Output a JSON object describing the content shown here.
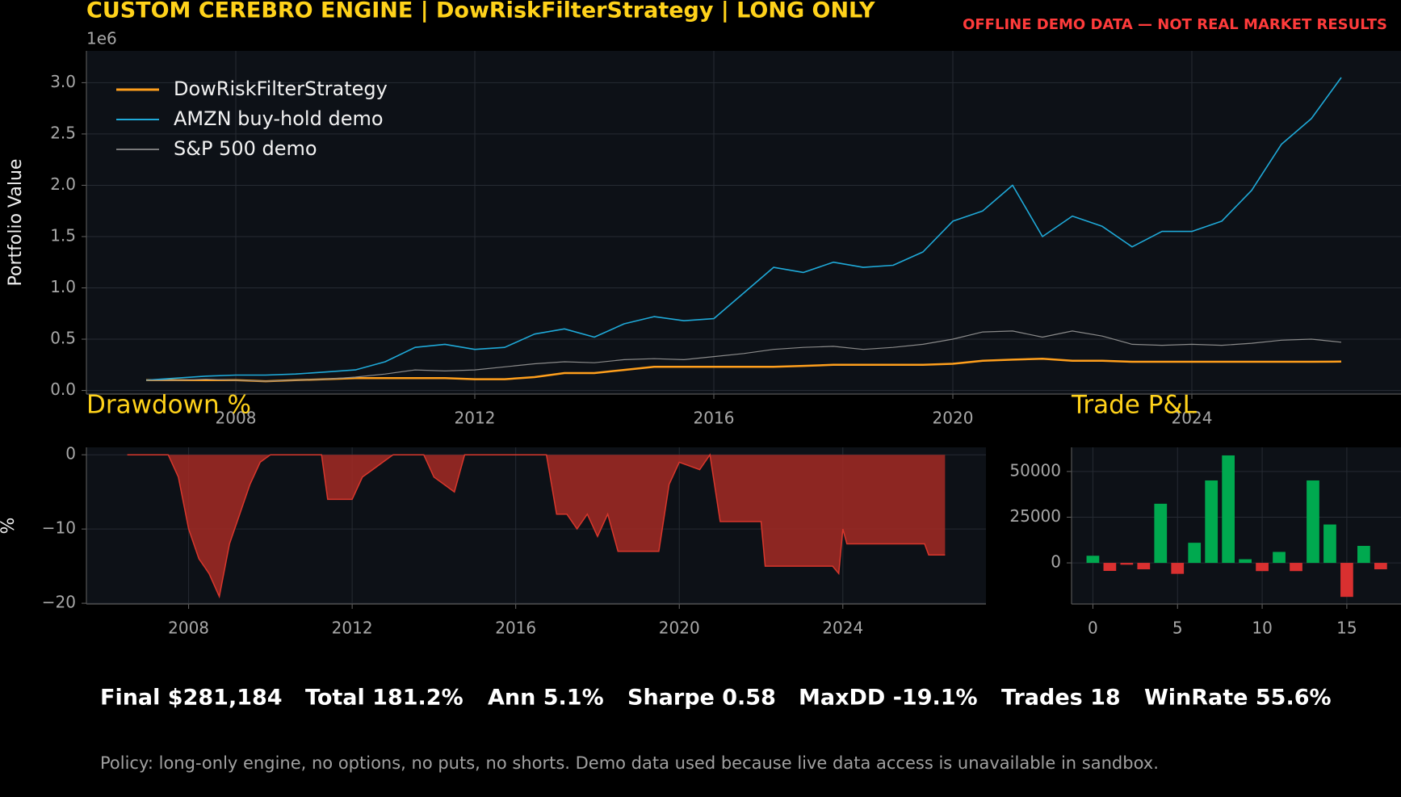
{
  "header": {
    "banner": "OFFLINE DEMO DATA — NOT REAL MARKET RESULTS"
  },
  "chart_data": [
    {
      "type": "line",
      "title": "CUSTOM CEREBRO ENGINE | DowRiskFilterStrategy | LONG ONLY",
      "y_offset_label": "1e6",
      "ylabel": "Portfolio Value",
      "x": [
        2006.5,
        2007,
        2007.5,
        2008,
        2008.5,
        2009,
        2009.5,
        2010,
        2010.5,
        2011,
        2011.5,
        2012,
        2012.5,
        2013,
        2013.5,
        2014,
        2014.5,
        2015,
        2015.5,
        2016,
        2016.5,
        2017,
        2017.5,
        2018,
        2018.5,
        2019,
        2019.5,
        2020,
        2020.5,
        2021,
        2021.5,
        2022,
        2022.5,
        2023,
        2023.5,
        2024,
        2024.5,
        2025,
        2025.5,
        2026,
        2026.5
      ],
      "series": [
        {
          "name": "DowRiskFilterStrategy",
          "color": "#ff9f1c",
          "width": 2.5,
          "values": [
            100000,
            100000,
            100000,
            100000,
            90000,
            100000,
            110000,
            120000,
            120000,
            120000,
            120000,
            110000,
            110000,
            130000,
            170000,
            170000,
            200000,
            230000,
            230000,
            230000,
            230000,
            230000,
            240000,
            250000,
            250000,
            250000,
            250000,
            260000,
            290000,
            300000,
            310000,
            290000,
            290000,
            280000,
            280000,
            280000,
            280000,
            280000,
            280000,
            280000,
            281184
          ]
        },
        {
          "name": "AMZN buy-hold demo",
          "color": "#1fa9d8",
          "width": 1.6,
          "values": [
            100000,
            120000,
            140000,
            150000,
            150000,
            160000,
            180000,
            200000,
            280000,
            420000,
            450000,
            400000,
            420000,
            550000,
            600000,
            520000,
            650000,
            720000,
            680000,
            700000,
            950000,
            1200000,
            1150000,
            1250000,
            1200000,
            1220000,
            1350000,
            1650000,
            1750000,
            2000000,
            1500000,
            1700000,
            1600000,
            1400000,
            1550000,
            1550000,
            1650000,
            1950000,
            2400000,
            2650000,
            3050000
          ]
        },
        {
          "name": "S&P 500 demo",
          "color": "#8a8a8a",
          "width": 1.2,
          "values": [
            100000,
            100000,
            110000,
            100000,
            90000,
            100000,
            110000,
            130000,
            160000,
            200000,
            190000,
            200000,
            230000,
            260000,
            280000,
            270000,
            300000,
            310000,
            300000,
            330000,
            360000,
            400000,
            420000,
            430000,
            400000,
            420000,
            450000,
            500000,
            570000,
            580000,
            520000,
            580000,
            530000,
            450000,
            440000,
            450000,
            440000,
            460000,
            490000,
            500000,
            470000
          ]
        }
      ],
      "xlim": [
        2005.5,
        2027.5
      ],
      "xticks": [
        2008,
        2012,
        2016,
        2020,
        2024
      ],
      "ylim": [
        -35000,
        3310000
      ],
      "yticks": [
        {
          "value": 0,
          "label": "0.0"
        },
        {
          "value": 500000,
          "label": "0.5"
        },
        {
          "value": 1000000,
          "label": "1.0"
        },
        {
          "value": 1500000,
          "label": "1.5"
        },
        {
          "value": 2000000,
          "label": "2.0"
        },
        {
          "value": 2500000,
          "label": "2.5"
        },
        {
          "value": 3000000,
          "label": "3.0"
        }
      ],
      "grid": true,
      "legend": "upper left"
    },
    {
      "type": "area",
      "title": "Drawdown %",
      "ylabel": "%",
      "color": "#d8372c",
      "fill": "#a52a25",
      "x": [
        2006.5,
        2007.5,
        2007.75,
        2008,
        2008.25,
        2008.5,
        2008.75,
        2009,
        2009.25,
        2009.5,
        2009.75,
        2010,
        2011.25,
        2011.4,
        2012,
        2012.25,
        2012.5,
        2012.75,
        2013,
        2013.75,
        2014,
        2014.25,
        2014.5,
        2014.75,
        2016.75,
        2017,
        2017.25,
        2017.5,
        2017.75,
        2018,
        2018.25,
        2018.5,
        2019,
        2019.5,
        2019.75,
        2020,
        2020.5,
        2020.75,
        2021,
        2021.5,
        2022,
        2022.1,
        2023,
        2023.75,
        2023.9,
        2024,
        2024.1,
        2025,
        2026,
        2026.1,
        2026.5
      ],
      "values": [
        0,
        0,
        -3,
        -10,
        -14,
        -16,
        -19.1,
        -12,
        -8,
        -4,
        -1,
        0,
        0,
        -6,
        -6,
        -3,
        -2,
        -1,
        0,
        0,
        -3,
        -4,
        -5,
        0,
        0,
        -8,
        -8,
        -10,
        -8,
        -11,
        -8,
        -13,
        -13,
        -13,
        -4,
        -1,
        -2,
        0,
        -9,
        -9,
        -9,
        -15,
        -15,
        -15,
        -16,
        -10,
        -12,
        -12,
        -12,
        -13.5,
        -13.5
      ],
      "xlim": [
        2005.5,
        2027.5
      ],
      "xticks": [
        2008,
        2012,
        2016,
        2020,
        2024
      ],
      "ylim": [
        -20.1,
        1
      ],
      "yticks": [
        0,
        {
          "value": -10,
          "label": "−10"
        },
        {
          "value": -20,
          "label": "−20"
        }
      ],
      "grid": true
    },
    {
      "type": "bar",
      "title": "Trade P&L",
      "positive_color": "#00a94f",
      "negative_color": "#d93030",
      "x": [
        0,
        1,
        2,
        3,
        4,
        5,
        6,
        7,
        8,
        9,
        10,
        11,
        12,
        13,
        14,
        15,
        16,
        17
      ],
      "values": [
        3900,
        -4400,
        -1000,
        -3500,
        32350,
        -6000,
        11000,
        45100,
        58800,
        2000,
        -4500,
        6000,
        -4500,
        45100,
        21000,
        -18600,
        9300,
        -3500
      ],
      "xlim": [
        -1.26,
        18.2
      ],
      "xticks": [
        0,
        5,
        10,
        15
      ],
      "ylim": [
        -22500,
        63200
      ],
      "yticks": [
        0,
        25000,
        50000
      ],
      "grid": true
    }
  ],
  "summary": {
    "stats": [
      "Final $281,184",
      "Total 181.2%",
      "Ann 5.1%",
      "Sharpe 0.58",
      "MaxDD -19.1%",
      "Trades 18",
      "WinRate 55.6%"
    ]
  },
  "footer": {
    "policy": "Policy: long-only engine, no options, no puts, no shorts. Demo data used because live data access is unavailable in sandbox."
  }
}
